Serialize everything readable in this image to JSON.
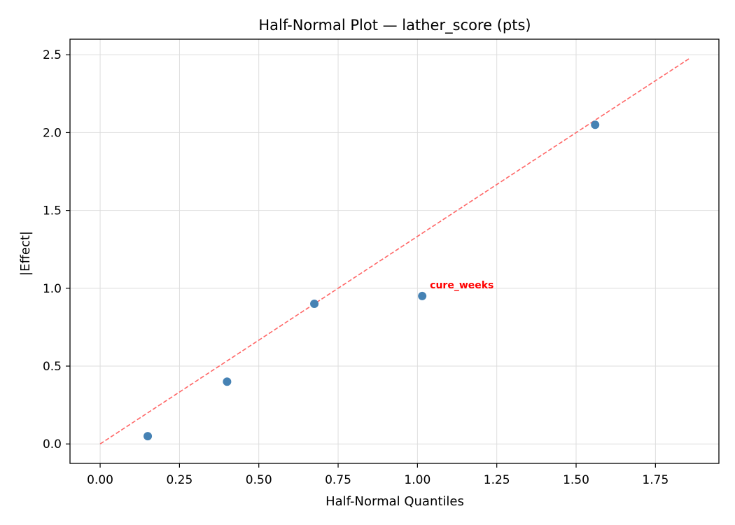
{
  "chart_data": {
    "type": "scatter",
    "title": "Half-Normal Plot — lather_score (pts)",
    "xlabel": "Half-Normal Quantiles",
    "ylabel": "|Effect|",
    "xlim": [
      -0.095,
      1.95
    ],
    "ylim": [
      -0.125,
      2.6
    ],
    "xticks": [
      0.0,
      0.25,
      0.5,
      0.75,
      1.0,
      1.25,
      1.5,
      1.75
    ],
    "xtick_labels": [
      "0.00",
      "0.25",
      "0.50",
      "0.75",
      "1.00",
      "1.25",
      "1.50",
      "1.75"
    ],
    "yticks": [
      0.0,
      0.5,
      1.0,
      1.5,
      2.0,
      2.5
    ],
    "ytick_labels": [
      "0.0",
      "0.5",
      "1.0",
      "1.5",
      "2.0",
      "2.5"
    ],
    "grid": true,
    "points": [
      {
        "x": 0.15,
        "y": 0.05
      },
      {
        "x": 0.4,
        "y": 0.4
      },
      {
        "x": 0.675,
        "y": 0.9
      },
      {
        "x": 1.015,
        "y": 0.95
      },
      {
        "x": 1.56,
        "y": 2.05
      }
    ],
    "point_color": "#4682b4",
    "reference_line": {
      "x": [
        0.0,
        1.86
      ],
      "y": [
        0.0,
        2.48
      ],
      "color": "#ff6666",
      "style": "dashed"
    },
    "annotations": [
      {
        "text": "cure_weeks",
        "x": 1.015,
        "y": 0.95,
        "color": "#ff0000"
      }
    ]
  }
}
